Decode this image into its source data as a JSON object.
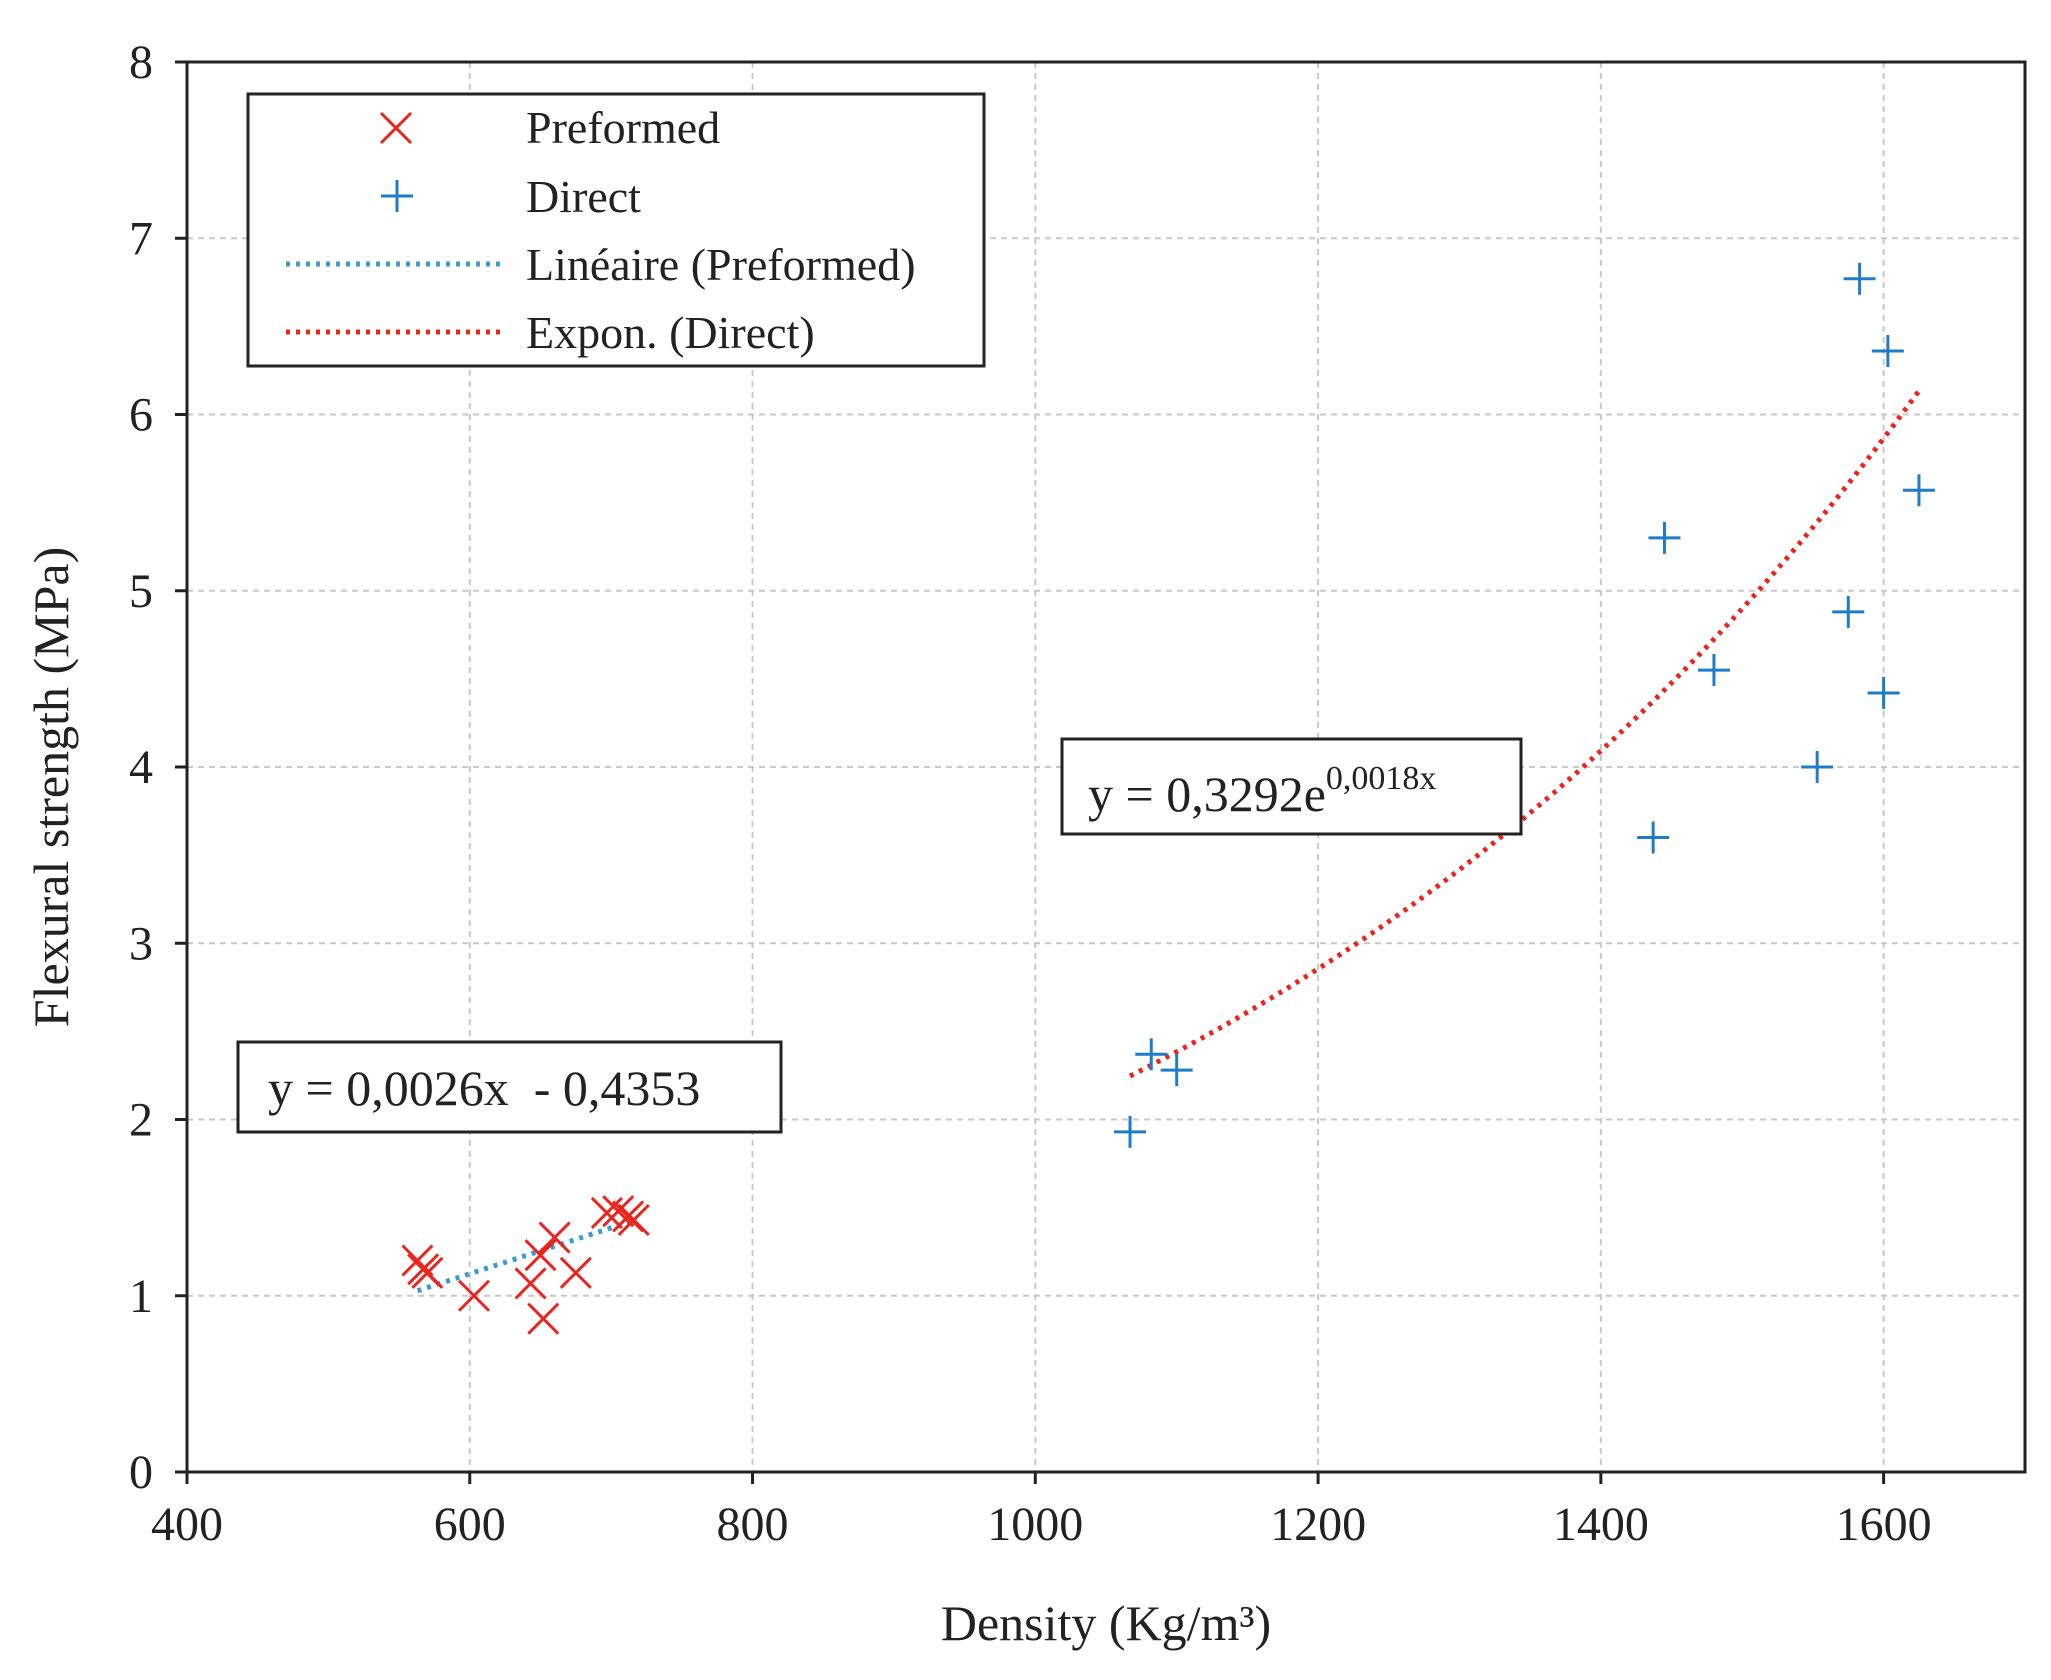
{
  "chart_data": {
    "type": "scatter",
    "xlabel": "Density (Kg/m³)",
    "ylabel": "Flexural strength (MPa)",
    "xlim": [
      400,
      1700
    ],
    "ylim": [
      0,
      8
    ],
    "xticks": [
      400,
      600,
      800,
      1000,
      1200,
      1400,
      1600
    ],
    "yticks": [
      0,
      1,
      2,
      3,
      4,
      5,
      6,
      7,
      8
    ],
    "grid": true,
    "legend_position": "top-left",
    "series": [
      {
        "name": "Preformed",
        "marker": "x",
        "color": "#e8251f",
        "points": [
          [
            563,
            1.2
          ],
          [
            567,
            1.15
          ],
          [
            570,
            1.13
          ],
          [
            603,
            1.0
          ],
          [
            643,
            1.07
          ],
          [
            650,
            1.23
          ],
          [
            652,
            0.87
          ],
          [
            660,
            1.33
          ],
          [
            675,
            1.13
          ],
          [
            697,
            1.47
          ],
          [
            705,
            1.48
          ],
          [
            712,
            1.45
          ],
          [
            716,
            1.43
          ]
        ]
      },
      {
        "name": "Direct",
        "marker": "plus",
        "color": "#1f7cc8",
        "points": [
          [
            1067,
            1.93
          ],
          [
            1082,
            2.37
          ],
          [
            1100,
            2.28
          ],
          [
            1437,
            3.6
          ],
          [
            1445,
            5.3
          ],
          [
            1480,
            4.55
          ],
          [
            1553,
            4.0
          ],
          [
            1575,
            4.88
          ],
          [
            1583,
            6.77
          ],
          [
            1600,
            4.42
          ],
          [
            1603,
            6.36
          ],
          [
            1625,
            5.57
          ]
        ]
      }
    ],
    "trendlines": [
      {
        "name": "Linéaire (Preformed)",
        "kind": "linear",
        "color": "#3c9ad2",
        "slope": 0.0026,
        "intercept": -0.4353,
        "x_range": [
          563,
          716
        ],
        "equation": "y = 0,0026x  - 0,4353"
      },
      {
        "name": "Expon. (Direct)",
        "kind": "exponential",
        "color": "#e8251f",
        "a": 0.3292,
        "b": 0.0018,
        "x_range": [
          1067,
          1625
        ],
        "equation_base": "y = 0,3292e",
        "equation_exponent": "0,0018x"
      }
    ],
    "legend": [
      "Preformed",
      "Direct",
      "Linéaire (Preformed)",
      "Expon. (Direct)"
    ]
  }
}
